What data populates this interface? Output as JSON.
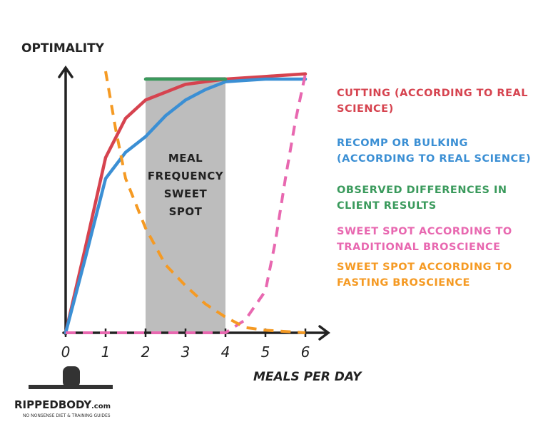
{
  "chart_data": {
    "type": "line",
    "y_label": "OPTIMALITY",
    "x_label": "MEALS PER DAY",
    "xlim": [
      0,
      6.5
    ],
    "ylim": [
      0,
      100
    ],
    "xticks": [
      0,
      1,
      2,
      3,
      4,
      5,
      6
    ],
    "shaded_region": {
      "label": "MEAL FREQUENCY SWEET SPOT",
      "x": [
        2,
        4
      ],
      "color": "#bdbdbd"
    },
    "series": [
      {
        "name": "CUTTING (ACCORDING TO REAL SCIENCE)",
        "color": "#d6434f",
        "dashed": false,
        "x": [
          0,
          0.5,
          1,
          1.5,
          2,
          2.5,
          3,
          3.5,
          4,
          5,
          6
        ],
        "values": [
          0,
          33,
          67,
          82,
          89,
          92,
          95,
          96,
          97,
          98,
          99
        ]
      },
      {
        "name": "RECOMP OR BULKING (ACCORDING TO REAL SCIENCE)",
        "color": "#3b8fd4",
        "dashed": false,
        "x": [
          0,
          0.5,
          1,
          1.5,
          2,
          2.5,
          3,
          3.5,
          4,
          5,
          6
        ],
        "values": [
          0,
          29,
          59,
          69,
          75,
          83,
          89,
          93,
          96,
          97,
          97
        ]
      },
      {
        "name": "OBSERVED DIFFERENCES IN CLIENT RESULTS",
        "color": "#3a9a5c",
        "dashed": false,
        "x": [
          2,
          3,
          4
        ],
        "values": [
          97,
          97,
          97
        ]
      },
      {
        "name": "SWEET SPOT ACCORDING TO TRADITIONAL BROSCIENCE",
        "color": "#e868b0",
        "dashed": true,
        "x": [
          0,
          2,
          4,
          4.5,
          5,
          5.25,
          5.5,
          5.75,
          6
        ],
        "values": [
          0,
          0,
          0,
          5,
          16,
          35,
          59,
          81,
          99
        ]
      },
      {
        "name": "SWEET SPOT ACCORDING TO FASTING BROSCIENCE",
        "color": "#f59a23",
        "dashed": true,
        "x": [
          1,
          1.25,
          1.5,
          2,
          2.5,
          3,
          3.5,
          4,
          4.5,
          5,
          6
        ],
        "values": [
          100,
          78,
          59,
          40,
          26,
          18,
          11,
          6,
          2,
          1,
          0
        ]
      }
    ],
    "logo": {
      "name": "RIPPEDBODY",
      "suffix": ".com",
      "tagline": "NO NONSENSE DIET & TRAINING GUIDES"
    }
  }
}
